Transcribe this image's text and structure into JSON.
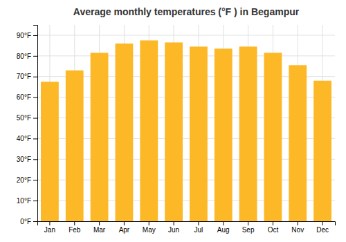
{
  "chart_data": {
    "type": "bar",
    "title": "Average monthly temperatures (°F ) in Begampur",
    "categories": [
      "Jan",
      "Feb",
      "Mar",
      "Apr",
      "May",
      "Jun",
      "Jul",
      "Aug",
      "Sep",
      "Oct",
      "Nov",
      "Dec"
    ],
    "values": [
      67.5,
      73.0,
      81.5,
      86.0,
      87.5,
      86.5,
      84.5,
      83.5,
      84.5,
      81.5,
      75.5,
      68.0
    ],
    "color": "#FDB827",
    "ylim": [
      0,
      95
    ],
    "yticks": [
      {
        "value": 0,
        "label": "0°F"
      },
      {
        "value": 10,
        "label": "10°F"
      },
      {
        "value": 20,
        "label": "20°F"
      },
      {
        "value": 30,
        "label": "30°F"
      },
      {
        "value": 40,
        "label": "40°F"
      },
      {
        "value": 50,
        "label": "50°F"
      },
      {
        "value": 60,
        "label": "60°F"
      },
      {
        "value": 70,
        "label": "70°F"
      },
      {
        "value": 80,
        "label": "80°F"
      },
      {
        "value": 90,
        "label": "90°F"
      }
    ],
    "grid": true
  }
}
